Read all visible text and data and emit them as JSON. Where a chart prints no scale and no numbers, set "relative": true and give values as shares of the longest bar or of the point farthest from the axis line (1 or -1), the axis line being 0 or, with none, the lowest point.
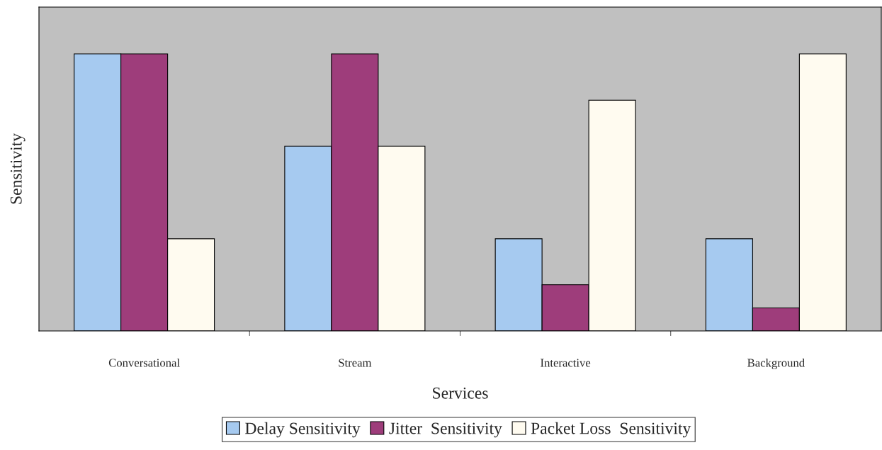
{
  "chart_data": {
    "type": "bar",
    "relative": true,
    "xlabel": "Services",
    "ylabel": "Sensitivity",
    "categories": [
      "Conversational",
      "Stream",
      "Interactive",
      "Background"
    ],
    "series": [
      {
        "name": "Delay Sensitivity",
        "color": "#a6caf0",
        "values": [
          1,
          0.667,
          0.333,
          0.333
        ]
      },
      {
        "name": "Jitter  Sensitivity",
        "color": "#9e3d7b",
        "values": [
          1,
          1,
          0.167,
          0.083
        ]
      },
      {
        "name": "Packet Loss  Sensitivity",
        "color": "#fffbf0",
        "values": [
          0.333,
          0.667,
          0.833,
          1
        ]
      }
    ],
    "legend": "bottom",
    "grid": false
  }
}
